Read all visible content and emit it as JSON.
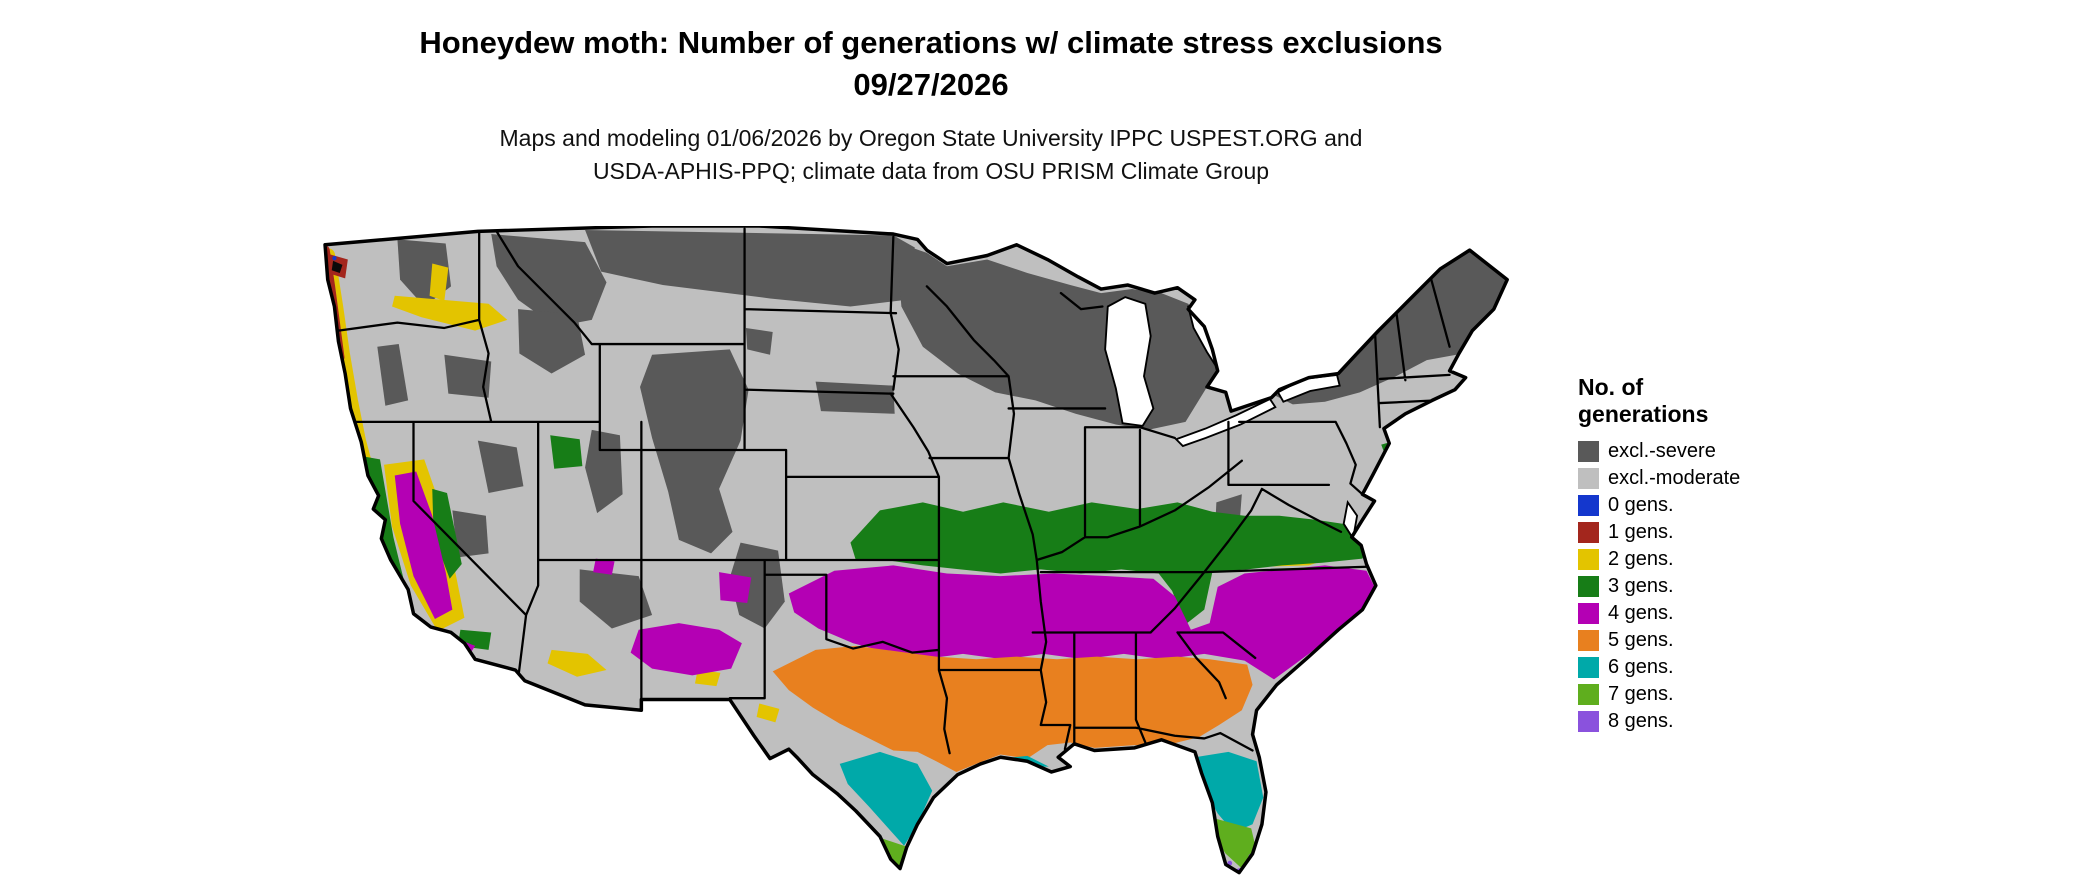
{
  "title": {
    "line1": "Honeydew moth: Number of generations w/ climate stress exclusions",
    "line2": "09/27/2026"
  },
  "attribution": {
    "line1": "Maps and modeling 01/06/2026 by Oregon State University IPPC USPEST.ORG and",
    "line2": "USDA-APHIS-PPQ; climate data from OSU PRISM Climate Group"
  },
  "legend": {
    "title_line1": "No. of",
    "title_line2": "generations",
    "items": [
      {
        "label": "excl.-severe",
        "color": "#595959"
      },
      {
        "label": "excl.-moderate",
        "color": "#bfbfbf"
      },
      {
        "label": "0 gens.",
        "color": "#1437cd"
      },
      {
        "label": "1 gens.",
        "color": "#a3261d"
      },
      {
        "label": "2 gens.",
        "color": "#e3c400"
      },
      {
        "label": "3 gens.",
        "color": "#177d17"
      },
      {
        "label": "4 gens.",
        "color": "#b400b4"
      },
      {
        "label": "5 gens.",
        "color": "#e8801f"
      },
      {
        "label": "6 gens.",
        "color": "#00a9a9"
      },
      {
        "label": "7 gens.",
        "color": "#5fae1e"
      },
      {
        "label": "8 gens.",
        "color": "#8a52dd"
      }
    ]
  }
}
